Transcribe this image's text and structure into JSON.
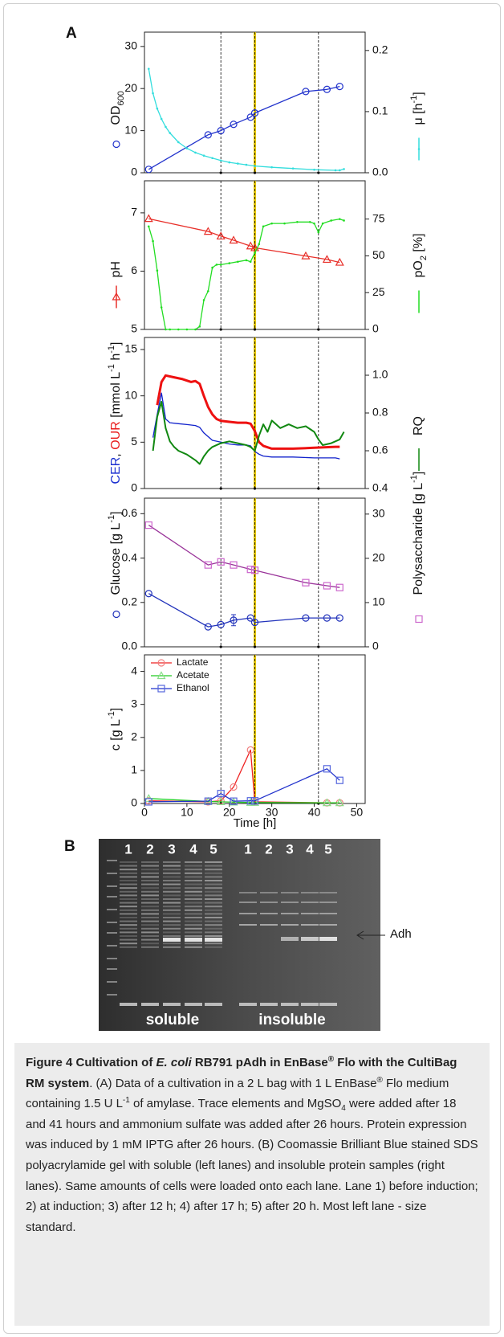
{
  "chart_data": [
    {
      "type": "line",
      "ylabel": [
        {
          "text": "OD"
        },
        {
          "text": "600",
          "style": "sub"
        }
      ],
      "y2label": [
        {
          "text": "μ [h"
        },
        {
          "text": "-1",
          "style": "sup"
        },
        {
          "text": "]"
        }
      ],
      "xlim": [
        0,
        52
      ],
      "ylim": [
        0,
        33.4
      ],
      "yticks": [
        0,
        10,
        20,
        30
      ],
      "y2lim": [
        0,
        0.23
      ],
      "y2ticks": [
        {
          "value": 0,
          "label": "0.0"
        },
        0.1,
        0.2
      ],
      "series": [
        {
          "color": "#2233cc",
          "marker": "circle",
          "line": true,
          "key": "marker",
          "x": [
            1,
            15,
            18,
            21,
            25,
            26,
            38,
            43,
            46
          ],
          "values": [
            0.8,
            9,
            10,
            11.5,
            13.2,
            14.2,
            19.3,
            19.8,
            20.5
          ]
        },
        {
          "color": "#33dddd",
          "marker": "dot",
          "line": true,
          "axis": "y2",
          "key": "line+marker",
          "x": [
            1,
            2,
            3,
            4,
            5,
            6,
            8,
            10,
            12,
            14,
            16,
            18,
            20,
            22,
            24,
            26,
            30,
            35,
            40,
            45,
            46,
            47
          ],
          "values": [
            0.17,
            0.13,
            0.105,
            0.088,
            0.075,
            0.065,
            0.05,
            0.04,
            0.033,
            0.028,
            0.024,
            0.02,
            0.017,
            0.015,
            0.013,
            0.011,
            0.009,
            0.007,
            0.005,
            0.004,
            0.004,
            0.006
          ]
        }
      ]
    },
    {
      "type": "line",
      "ylabel": [
        {
          "text": "pH"
        }
      ],
      "y2label": [
        {
          "text": "pO"
        },
        {
          "text": "2",
          "style": "sub"
        },
        {
          "text": " [%]"
        }
      ],
      "xlim": [
        0,
        52
      ],
      "ylim": [
        5,
        7.55
      ],
      "yticks": [
        5,
        6,
        7
      ],
      "y2lim": [
        0,
        101
      ],
      "y2ticks": [
        0,
        25,
        50,
        75
      ],
      "series": [
        {
          "color": "#e8302a",
          "marker": "triangle",
          "line": true,
          "key": "line+marker",
          "x": [
            1,
            15,
            18,
            21,
            25,
            26,
            38,
            43,
            46
          ],
          "values": [
            6.9,
            6.68,
            6.6,
            6.53,
            6.43,
            6.4,
            6.26,
            6.2,
            6.15
          ]
        },
        {
          "color": "#22dd22",
          "marker": "dot",
          "line": true,
          "axis": "y2",
          "key": "line",
          "x": [
            1,
            2,
            3,
            4,
            5,
            6,
            8,
            10,
            12,
            13,
            14,
            15,
            16,
            17,
            18,
            20,
            22,
            24,
            25,
            26,
            27,
            28,
            30,
            33,
            36,
            39,
            40,
            41,
            42,
            44,
            46,
            47
          ],
          "values": [
            70,
            60,
            40,
            15,
            0,
            0,
            0,
            0,
            0,
            2,
            20,
            26,
            42,
            44,
            44,
            45,
            46,
            47,
            46,
            52,
            58,
            70,
            72,
            72,
            73,
            73,
            72,
            66,
            72,
            74,
            75,
            74
          ]
        }
      ]
    },
    {
      "type": "line",
      "ylabel": [
        {
          "text": "CER",
          "color": "#1a2fd0"
        },
        {
          "text": ", "
        },
        {
          "text": "OUR",
          "color": "#e81a1a"
        },
        {
          "text": " [mmol L"
        },
        {
          "text": "-1",
          "style": "sup"
        },
        {
          "text": " h"
        },
        {
          "text": "-1",
          "style": "sup"
        },
        {
          "text": "]"
        }
      ],
      "y2label": [
        {
          "text": "RQ"
        }
      ],
      "xlim": [
        0,
        52
      ],
      "ylim": [
        0,
        16.3
      ],
      "yticks": [
        0,
        5,
        10,
        15
      ],
      "y2lim": [
        0.4,
        1.2
      ],
      "y2ticks": [
        0.4,
        0.6,
        0.8,
        {
          "value": 1,
          "label": "1.0"
        }
      ],
      "series": [
        {
          "color": "#ee1111",
          "line": true,
          "width": 3,
          "x": [
            3,
            4,
            5,
            7,
            9,
            11,
            12,
            13,
            14,
            15,
            16,
            17,
            18,
            20,
            22,
            24,
            25,
            26,
            27,
            28,
            30,
            35,
            40,
            45,
            46
          ],
          "values": [
            9,
            11.5,
            12.2,
            12,
            11.8,
            11.5,
            11.6,
            11.3,
            10,
            8.8,
            8,
            7.5,
            7.3,
            7.2,
            7.1,
            7.1,
            7,
            6.2,
            5,
            4.6,
            4.3,
            4.3,
            4.4,
            4.5,
            4.5
          ]
        },
        {
          "color": "#1122cc",
          "line": true,
          "x": [
            2,
            3,
            4,
            5,
            6,
            8,
            10,
            12,
            13,
            14,
            15,
            16,
            18,
            20,
            22,
            24,
            25,
            26,
            27,
            28,
            30,
            35,
            40,
            45,
            46
          ],
          "values": [
            5.5,
            8,
            10.3,
            7.5,
            7.1,
            7,
            6.9,
            6.8,
            6.6,
            6,
            5.6,
            5.2,
            5,
            4.8,
            4.7,
            4.7,
            4.6,
            4,
            3.7,
            3.5,
            3.4,
            3.4,
            3.3,
            3.3,
            3.2
          ]
        },
        {
          "color": "#118811",
          "line": true,
          "width": 2,
          "axis": "y2",
          "key": "line",
          "x": [
            2,
            3,
            4,
            5,
            6,
            7,
            8,
            10,
            12,
            13,
            14,
            15,
            16,
            18,
            20,
            22,
            24,
            25,
            26,
            27,
            28,
            29,
            30,
            32,
            34,
            36,
            38,
            40,
            41,
            42,
            44,
            46,
            47
          ],
          "values": [
            0.6,
            0.78,
            0.86,
            0.72,
            0.65,
            0.62,
            0.6,
            0.58,
            0.55,
            0.53,
            0.57,
            0.6,
            0.62,
            0.64,
            0.65,
            0.64,
            0.63,
            0.62,
            0.6,
            0.68,
            0.74,
            0.7,
            0.76,
            0.72,
            0.74,
            0.72,
            0.73,
            0.7,
            0.66,
            0.63,
            0.64,
            0.66,
            0.7
          ]
        }
      ]
    },
    {
      "type": "line",
      "ylabel": [
        {
          "text": "Glucose [g L"
        },
        {
          "text": "-1",
          "style": "sup"
        },
        {
          "text": "]"
        }
      ],
      "y2label": [
        {
          "text": "Polysaccharide [g L"
        },
        {
          "text": "-1",
          "style": "sup"
        },
        {
          "text": "]"
        }
      ],
      "xlim": [
        0,
        52
      ],
      "ylim": [
        0,
        0.67
      ],
      "yticks": [
        {
          "value": 0,
          "label": "0.0"
        },
        0.2,
        0.4,
        0.6
      ],
      "y2lim": [
        0,
        33.6
      ],
      "y2ticks": [
        0,
        10,
        20,
        30
      ],
      "series": [
        {
          "color": "#2233bb",
          "marker": "circle",
          "line": true,
          "key": "marker",
          "x": [
            1,
            15,
            18,
            21,
            25,
            26,
            38,
            43,
            46
          ],
          "values": [
            0.24,
            0.09,
            0.1,
            0.12,
            0.13,
            0.11,
            0.13,
            0.13,
            0.13
          ],
          "errors": [
            null,
            null,
            null,
            0.025,
            null,
            null,
            null,
            null,
            null
          ]
        },
        {
          "color": "#993399",
          "markercolor": "#cc66cc",
          "marker": "square",
          "line": true,
          "axis": "y2",
          "key": "marker",
          "x": [
            1,
            15,
            18,
            21,
            25,
            26,
            38,
            43,
            46
          ],
          "values": [
            27.5,
            18.5,
            19.2,
            18.5,
            17.5,
            17.3,
            14.5,
            13.8,
            13.4
          ]
        }
      ]
    },
    {
      "type": "line",
      "ylabel": [
        {
          "text": "c [g L"
        },
        {
          "text": "-1",
          "style": "sup"
        },
        {
          "text": "]"
        }
      ],
      "xlabel": "Time [h]",
      "legend": "top-left",
      "xlim": [
        0,
        52
      ],
      "ylim": [
        0,
        4.5
      ],
      "yticks": [
        0,
        1,
        2,
        3,
        4
      ],
      "xticks": [
        0,
        10,
        20,
        30,
        40,
        50
      ],
      "series": [
        {
          "name": "Lactate",
          "color": "#ee2222",
          "markercolor": "#f08080",
          "marker": "circle",
          "line": true,
          "x": [
            1,
            15,
            18,
            21,
            25,
            26,
            43,
            46
          ],
          "values": [
            0.08,
            0.05,
            0.08,
            0.5,
            1.62,
            0.05,
            0.02,
            0.02
          ]
        },
        {
          "name": "Acetate",
          "color": "#22cc22",
          "markercolor": "#88dd88",
          "marker": "triangle",
          "line": true,
          "x": [
            1,
            15,
            18,
            21,
            25,
            26,
            43,
            46
          ],
          "values": [
            0.15,
            0.06,
            0.05,
            0.04,
            0.03,
            0.03,
            0.02,
            0.02
          ]
        },
        {
          "name": "Ethanol",
          "color": "#2233cc",
          "markercolor": "#5566dd",
          "marker": "square",
          "line": true,
          "x": [
            1,
            15,
            18,
            21,
            25,
            26,
            43,
            46
          ],
          "values": [
            0.05,
            0.07,
            0.3,
            0.07,
            0.08,
            0.08,
            1.05,
            0.7
          ]
        }
      ]
    }
  ],
  "figure": {
    "panel_labels": [
      "A",
      "B"
    ],
    "event_times": [
      18,
      26,
      41
    ],
    "event_colors": [
      "#000000",
      "#e6c800",
      "#000000"
    ],
    "gel": {
      "soluble_lanes": [
        "1",
        "2",
        "3",
        "4",
        "5"
      ],
      "insoluble_lanes": [
        "1",
        "2",
        "3",
        "4",
        "5"
      ],
      "group_labels": [
        "soluble",
        "insoluble"
      ],
      "band_label": "Adh"
    },
    "caption": {
      "title": [
        {
          "text": "Figure 4 Cultivation of "
        },
        {
          "text": "E. coli",
          "style": "italic"
        },
        {
          "text": " RB791 pAdh in EnBase"
        },
        {
          "text": "®",
          "style": "sup"
        },
        {
          "text": " Flo with the CultiBag RM system"
        }
      ],
      "body": [
        {
          "text": ". (A) Data of a cultivation in a 2 L bag with 1 L EnBase"
        },
        {
          "text": "®",
          "style": "sup"
        },
        {
          "text": " Flo medium containing 1.5 U L"
        },
        {
          "text": "-1",
          "style": "sup"
        },
        {
          "text": " of amylase. Trace elements and MgSO"
        },
        {
          "text": "4",
          "style": "sub"
        },
        {
          "text": " were added after 18 and 41 hours and ammonium sulfate was added after 26 hours. Protein expression was induced by 1 mM IPTG after 26 hours. (B) Coomassie Brilliant Blue stained SDS polyacrylamide gel with soluble (left lanes) and insoluble protein samples (right lanes). Same amounts of cells were loaded onto each lane. Lane 1) before induction; 2) at induction; 3) after 12 h; 4) after 17 h; 5) after 20 h. Most left lane - size standard."
        }
      ]
    }
  }
}
